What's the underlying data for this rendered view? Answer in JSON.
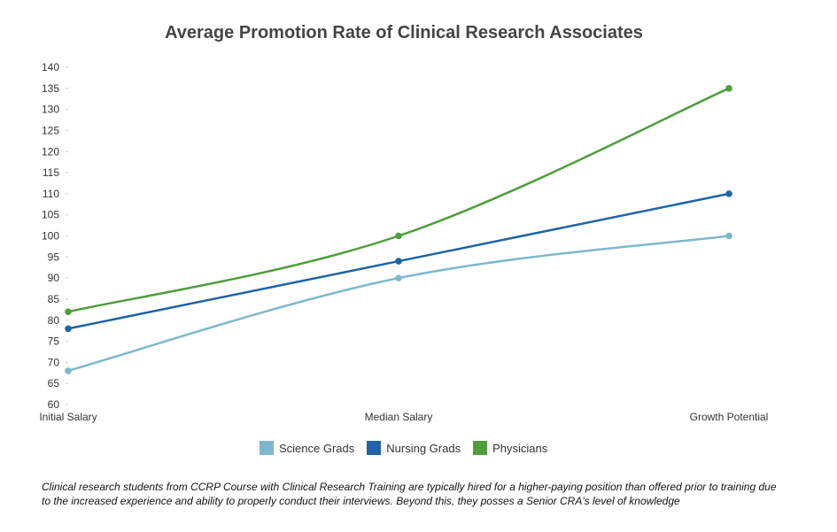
{
  "chart_data": {
    "type": "line",
    "title": "Average Promotion Rate of Clinical Research Associates",
    "categories": [
      "Initial Salary",
      "Median Salary",
      "Growth Potential"
    ],
    "ylim": [
      60,
      140
    ],
    "yticks": [
      60,
      65,
      70,
      75,
      80,
      85,
      90,
      95,
      100,
      105,
      110,
      115,
      120,
      125,
      130,
      135,
      140
    ],
    "grid": false,
    "legend_position": "bottom",
    "series": [
      {
        "name": "Science Grads",
        "color": "#7fb8cc",
        "values": [
          68,
          90,
          100
        ]
      },
      {
        "name": "Nursing Grads",
        "color": "#1f64a6",
        "values": [
          78,
          94,
          110
        ]
      },
      {
        "name": "Physicians",
        "color": "#4e9e3c",
        "values": [
          82,
          100,
          135
        ]
      }
    ]
  },
  "caption": "Clinical research students from CCRP Course with Clinical Research Training are typically hired for a higher-paying position than offered prior to training due to the increased experience and ability to properly conduct their interviews. Beyond this, they posses a Senior CRA's level of knowledge"
}
